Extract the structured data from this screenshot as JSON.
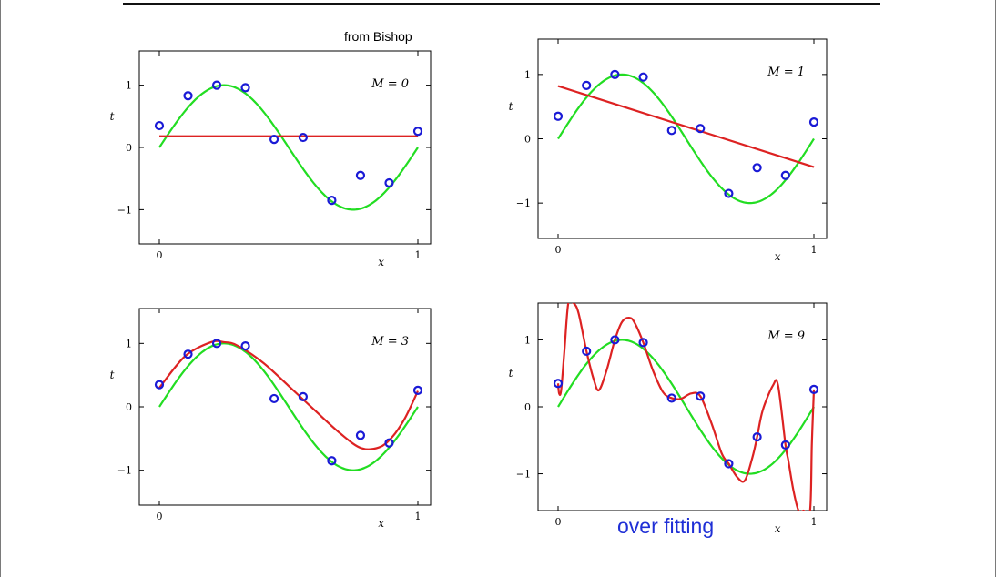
{
  "credit": "from Bishop",
  "caption": "over fitting",
  "colors": {
    "truth": "#22dd22",
    "fit": "#dd2222",
    "points": "#1a1ad6",
    "caption": "#1f2fd6"
  },
  "chart_data": [
    {
      "type": "line",
      "annotation": "M = 0",
      "xlabel": "x",
      "ylabel": "t",
      "xlim": [
        0,
        1
      ],
      "ylim": [
        -1.55,
        1.55
      ],
      "xticks": [
        "0",
        "1"
      ],
      "yticks": [
        "−1",
        "0",
        "1"
      ],
      "series": [
        {
          "role": "truth",
          "color": "#22dd22",
          "function": "sin(2πx)"
        },
        {
          "role": "fit",
          "color": "#dd2222",
          "x": [
            0,
            1
          ],
          "y": [
            0.18,
            0.18
          ]
        }
      ],
      "points": {
        "x": [
          0.0,
          0.111,
          0.222,
          0.333,
          0.444,
          0.556,
          0.667,
          0.778,
          0.889,
          1.0
        ],
        "y": [
          0.35,
          0.83,
          1.0,
          0.96,
          0.13,
          0.16,
          -0.85,
          -0.45,
          -0.57,
          0.26
        ]
      }
    },
    {
      "type": "line",
      "annotation": "M = 1",
      "xlabel": "x",
      "ylabel": "t",
      "xlim": [
        0,
        1
      ],
      "ylim": [
        -1.55,
        1.55
      ],
      "xticks": [
        "0",
        "1"
      ],
      "yticks": [
        "−1",
        "0",
        "1"
      ],
      "series": [
        {
          "role": "truth",
          "color": "#22dd22",
          "function": "sin(2πx)"
        },
        {
          "role": "fit",
          "color": "#dd2222",
          "x": [
            0,
            1
          ],
          "y": [
            0.82,
            -0.44
          ]
        }
      ],
      "points": {
        "x": [
          0.0,
          0.111,
          0.222,
          0.333,
          0.444,
          0.556,
          0.667,
          0.778,
          0.889,
          1.0
        ],
        "y": [
          0.35,
          0.83,
          1.0,
          0.96,
          0.13,
          0.16,
          -0.85,
          -0.45,
          -0.57,
          0.26
        ]
      }
    },
    {
      "type": "line",
      "annotation": "M = 3",
      "xlabel": "x",
      "ylabel": "t",
      "xlim": [
        0,
        1
      ],
      "ylim": [
        -1.55,
        1.55
      ],
      "xticks": [
        "0",
        "1"
      ],
      "yticks": [
        "−1",
        "0",
        "1"
      ],
      "series": [
        {
          "role": "truth",
          "color": "#22dd22",
          "function": "sin(2πx)"
        },
        {
          "role": "fit",
          "color": "#dd2222",
          "x": [
            0,
            0.1,
            0.2,
            0.25,
            0.3,
            0.4,
            0.5,
            0.6,
            0.7,
            0.78,
            0.85,
            0.9,
            0.95,
            1.0
          ],
          "y": [
            0.3,
            0.8,
            1.02,
            1.02,
            0.97,
            0.7,
            0.33,
            -0.05,
            -0.42,
            -0.65,
            -0.64,
            -0.48,
            -0.18,
            0.25
          ]
        }
      ],
      "points": {
        "x": [
          0.0,
          0.111,
          0.222,
          0.333,
          0.444,
          0.556,
          0.667,
          0.778,
          0.889,
          1.0
        ],
        "y": [
          0.35,
          0.83,
          1.0,
          0.96,
          0.13,
          0.16,
          -0.85,
          -0.45,
          -0.57,
          0.26
        ]
      }
    },
    {
      "type": "line",
      "annotation": "M = 9",
      "xlabel": "x",
      "ylabel": "t",
      "xlim": [
        0,
        1
      ],
      "ylim": [
        -1.55,
        1.55
      ],
      "xticks": [
        "0",
        "1"
      ],
      "yticks": [
        "−1",
        "0",
        "1"
      ],
      "series": [
        {
          "role": "truth",
          "color": "#22dd22",
          "function": "sin(2πx)"
        },
        {
          "role": "fit",
          "color": "#dd2222",
          "x": [
            0,
            0.004,
            0.012,
            0.025,
            0.04,
            0.06,
            0.08,
            0.111,
            0.14,
            0.16,
            0.19,
            0.222,
            0.25,
            0.28,
            0.3,
            0.333,
            0.37,
            0.41,
            0.444,
            0.48,
            0.52,
            0.556,
            0.6,
            0.64,
            0.667,
            0.7,
            0.73,
            0.76,
            0.778,
            0.8,
            0.84,
            0.86,
            0.889,
            0.9,
            0.92,
            0.94,
            0.96,
            0.985,
            0.992,
            1.0
          ],
          "y": [
            0.35,
            0.2,
            0.25,
            0.85,
            1.55,
            1.55,
            1.4,
            0.83,
            0.4,
            0.25,
            0.55,
            1.0,
            1.27,
            1.33,
            1.25,
            0.96,
            0.55,
            0.22,
            0.13,
            0.12,
            0.2,
            0.16,
            -0.25,
            -0.7,
            -0.85,
            -1.05,
            -1.1,
            -0.75,
            -0.45,
            -0.05,
            0.32,
            0.32,
            -0.57,
            -0.8,
            -1.25,
            -1.55,
            -1.55,
            -1.55,
            -0.55,
            0.26
          ]
        }
      ],
      "points": {
        "x": [
          0.0,
          0.111,
          0.222,
          0.333,
          0.444,
          0.556,
          0.667,
          0.778,
          0.889,
          1.0
        ],
        "y": [
          0.35,
          0.83,
          1.0,
          0.96,
          0.13,
          0.16,
          -0.85,
          -0.45,
          -0.57,
          0.26
        ]
      }
    }
  ]
}
